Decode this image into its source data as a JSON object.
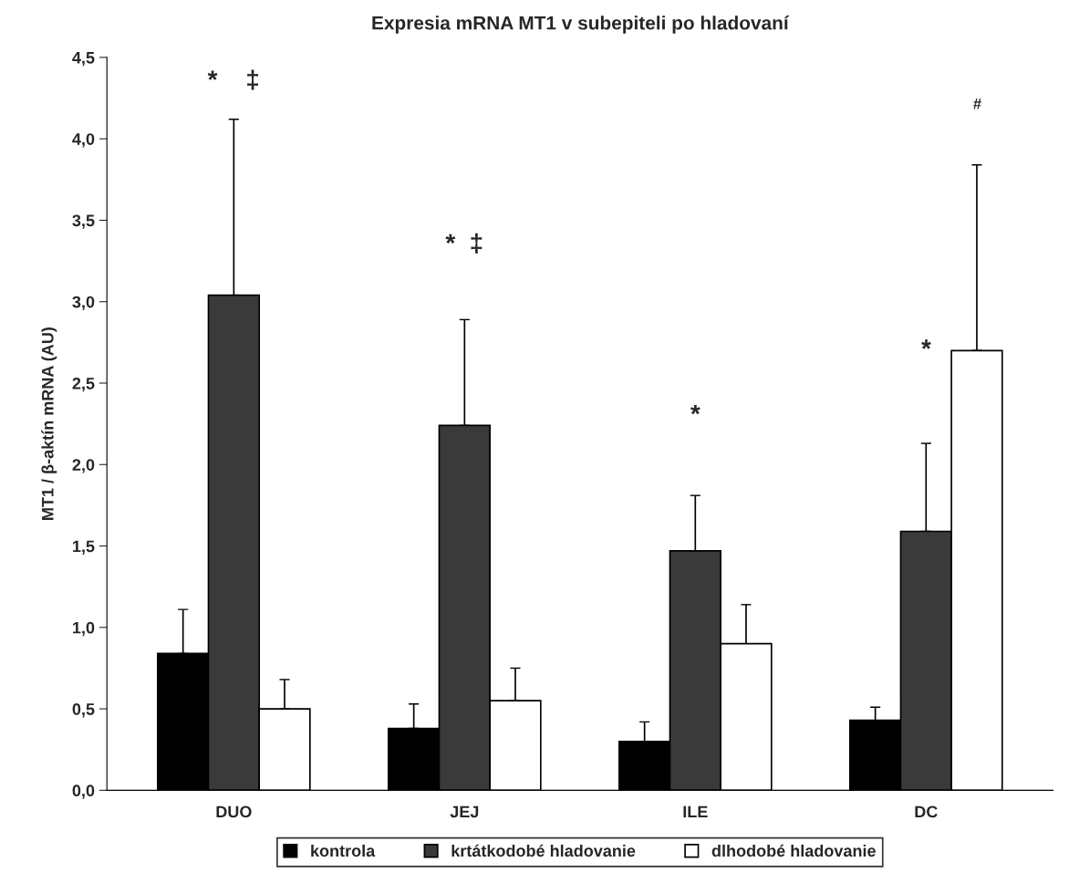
{
  "chart_data": {
    "type": "bar",
    "title": "Expresia mRNA MT1 v subepiteli po hladovaní",
    "ylabel": "MT1 / β-aktín mRNA (AU)",
    "categories": [
      "DUO",
      "JEJ",
      "ILE",
      "DC"
    ],
    "series": [
      {
        "name": "kontrola",
        "color": "#000000",
        "values": [
          0.84,
          0.38,
          0.3,
          0.43
        ],
        "errors": [
          [
            0.84,
            1.11
          ],
          [
            0.38,
            0.53
          ],
          [
            0.3,
            0.42
          ],
          [
            0.43,
            0.51
          ]
        ]
      },
      {
        "name": "krtátkodobé hladovanie",
        "color": "#3a3a3a",
        "values": [
          3.04,
          2.24,
          1.47,
          1.59
        ],
        "errors": [
          [
            3.04,
            4.12
          ],
          [
            2.24,
            2.89
          ],
          [
            1.47,
            1.81
          ],
          [
            1.59,
            2.13
          ]
        ]
      },
      {
        "name": "dlhodobé hladovanie",
        "color": "#ffffff",
        "values": [
          0.5,
          0.55,
          0.9,
          2.7
        ],
        "errors": [
          [
            0.5,
            0.68
          ],
          [
            0.55,
            0.75
          ],
          [
            0.9,
            1.14
          ],
          [
            2.7,
            3.84
          ]
        ]
      }
    ],
    "ylim": [
      0,
      4.5
    ],
    "yticks": [
      {
        "value": 0,
        "label": "0,0"
      },
      {
        "value": 0.5,
        "label": "0,5"
      },
      {
        "value": 1,
        "label": "1,0"
      },
      {
        "value": 1.5,
        "label": "1,5"
      },
      {
        "value": 2,
        "label": "2,0"
      },
      {
        "value": 2.5,
        "label": "2,5"
      },
      {
        "value": 3,
        "label": "3,0"
      },
      {
        "value": 3.5,
        "label": "3,5"
      },
      {
        "value": 4,
        "label": "4,0"
      },
      {
        "value": 4.5,
        "label": "4,5"
      }
    ],
    "annotations": [
      "*    ‡",
      "*  ‡",
      "*",
      "*",
      "#"
    ],
    "grid": false,
    "legend": "bottom"
  }
}
